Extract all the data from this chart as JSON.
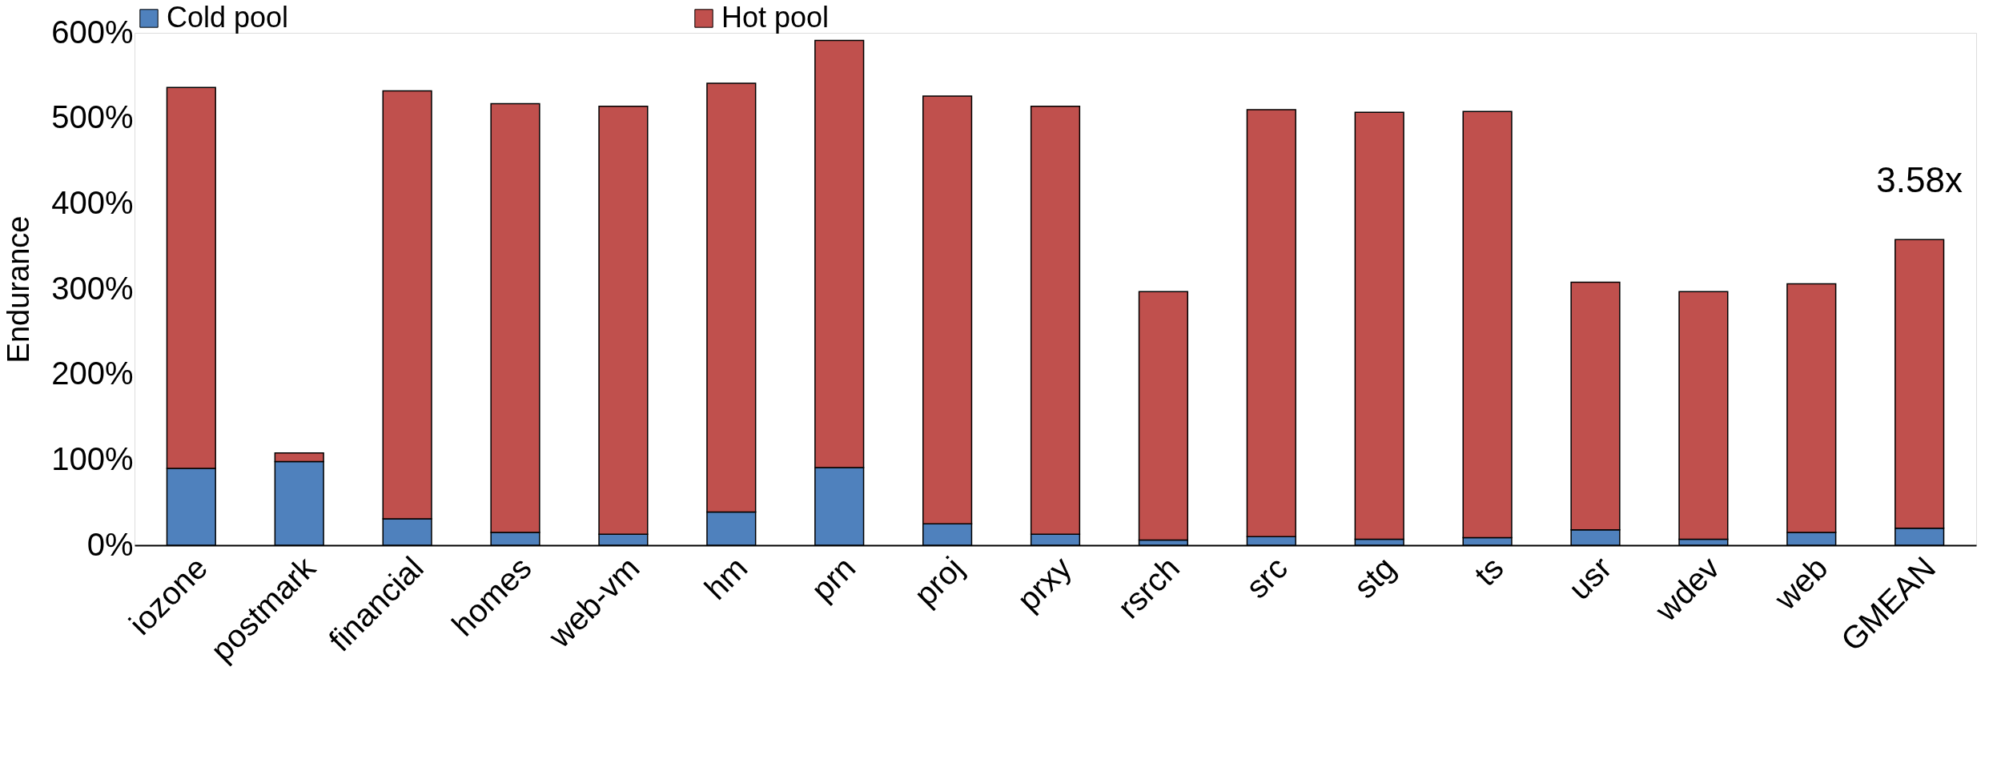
{
  "chart_data": {
    "type": "bar",
    "ylabel": "Endurance",
    "categories": [
      "iozone",
      "postmark",
      "financial",
      "homes",
      "web-vm",
      "hm",
      "prn",
      "proj",
      "prxy",
      "rsrch",
      "src",
      "stg",
      "ts",
      "usr",
      "wdev",
      "web",
      "GMEAN"
    ],
    "stacked": true,
    "series": [
      {
        "name": "Cold pool",
        "color": "#4f81bd",
        "values": [
          90,
          98,
          31,
          15,
          13,
          39,
          91,
          25,
          13,
          6,
          10,
          7,
          9,
          18,
          7,
          15,
          20
        ]
      },
      {
        "name": "Hot pool",
        "color": "#c0504d",
        "values": [
          446,
          10,
          501,
          502,
          501,
          502,
          500,
          501,
          501,
          291,
          500,
          500,
          499,
          290,
          290,
          291,
          338
        ]
      }
    ],
    "ylim": [
      0,
      600
    ],
    "yticks": [
      {
        "value": 0,
        "label": "0%"
      },
      {
        "value": 100,
        "label": "100%"
      },
      {
        "value": 200,
        "label": "200%"
      },
      {
        "value": 300,
        "label": "300%"
      },
      {
        "value": 400,
        "label": "400%"
      },
      {
        "value": 500,
        "label": "500%"
      },
      {
        "value": 600,
        "label": "600%"
      }
    ],
    "annotations": [
      {
        "text": "3.58x",
        "x": "GMEAN",
        "y": 358
      }
    ],
    "legend": "top",
    "grid": false
  }
}
